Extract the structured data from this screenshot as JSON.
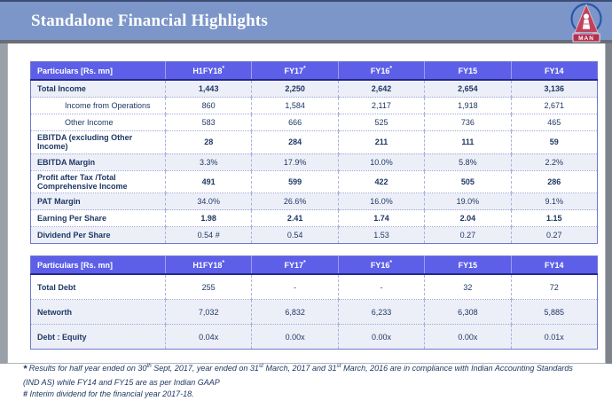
{
  "slide": {
    "title": "Standalone Financial Highlights",
    "logo_text": "MAN"
  },
  "table1": {
    "columns": [
      "Particulars [Rs. mn]",
      "H1FY18*",
      "FY17*",
      "FY16*",
      "FY15",
      "FY14"
    ],
    "rows": [
      {
        "label": "Total Income",
        "values": [
          "1,443",
          "2,250",
          "2,642",
          "2,654",
          "3,136"
        ],
        "bold_label": true,
        "bold_values": true,
        "shaded": true,
        "indent": false
      },
      {
        "label": "Income from Operations",
        "values": [
          "860",
          "1,584",
          "2,117",
          "1,918",
          "2,671"
        ],
        "bold_label": false,
        "bold_values": false,
        "shaded": false,
        "indent": true
      },
      {
        "label": "Other Income",
        "values": [
          "583",
          "666",
          "525",
          "736",
          "465"
        ],
        "bold_label": false,
        "bold_values": false,
        "shaded": false,
        "indent": true
      },
      {
        "label": "EBITDA (excluding Other Income)",
        "values": [
          "28",
          "284",
          "211",
          "111",
          "59"
        ],
        "bold_label": true,
        "bold_values": true,
        "shaded": false,
        "indent": false
      },
      {
        "label": "EBITDA Margin",
        "values": [
          "3.3%",
          "17.9%",
          "10.0%",
          "5.8%",
          "2.2%"
        ],
        "bold_label": true,
        "bold_values": false,
        "shaded": true,
        "indent": false
      },
      {
        "label": "Profit after Tax /Total Comprehensive Income",
        "values": [
          "491",
          "599",
          "422",
          "505",
          "286"
        ],
        "bold_label": true,
        "bold_values": true,
        "shaded": false,
        "indent": false
      },
      {
        "label": "PAT Margin",
        "values": [
          "34.0%",
          "26.6%",
          "16.0%",
          "19.0%",
          "9.1%"
        ],
        "bold_label": true,
        "bold_values": false,
        "shaded": true,
        "indent": false
      },
      {
        "label": "Earning Per Share",
        "values": [
          "1.98",
          "2.41",
          "1.74",
          "2.04",
          "1.15"
        ],
        "bold_label": true,
        "bold_values": true,
        "shaded": false,
        "indent": false
      },
      {
        "label": "Dividend Per Share",
        "values": [
          "0.54 #",
          "0.54",
          "1.53",
          "0.27",
          "0.27"
        ],
        "bold_label": true,
        "bold_values": false,
        "shaded": true,
        "indent": false
      }
    ]
  },
  "table2": {
    "columns": [
      "Particulars [Rs. mn]",
      "H1FY18*",
      "FY17*",
      "FY16*",
      "FY15",
      "FY14"
    ],
    "rows": [
      {
        "label": "Total Debt",
        "values": [
          "255",
          "-",
          "-",
          "32",
          "72"
        ],
        "bold_label": true,
        "bold_values": false,
        "shaded": false,
        "indent": false
      },
      {
        "label": "Networth",
        "values": [
          "7,032",
          "6,832",
          "6,233",
          "6,308",
          "5,885"
        ],
        "bold_label": true,
        "bold_values": false,
        "shaded": true,
        "indent": false
      },
      {
        "label": "Debt : Equity",
        "values": [
          "0.04x",
          "0.00x",
          "0.00x",
          "0.00x",
          "0.01x"
        ],
        "bold_label": true,
        "bold_values": false,
        "shaded": true,
        "indent": false
      }
    ]
  },
  "footnotes": [
    {
      "marker": "*",
      "text": "Results for half year ended on 30th Sept, 2017, year ended on 31st March, 2017 and 31st March, 2016 are in compliance with Indian Accounting Standards (IND AS) while FY14 and FY15 are as per Indian GAAP"
    },
    {
      "marker": "#",
      "text": "Interim dividend for the financial year 2017-18."
    }
  ],
  "colors": {
    "title_bar": "#7c96c9",
    "table_header": "#5d5fe8",
    "row_tint": "#edeff8",
    "text_navy": "#1f3864",
    "logo_red": "#c2415d",
    "logo_band": "#b23150",
    "logo_ring": "#2a57a8"
  }
}
